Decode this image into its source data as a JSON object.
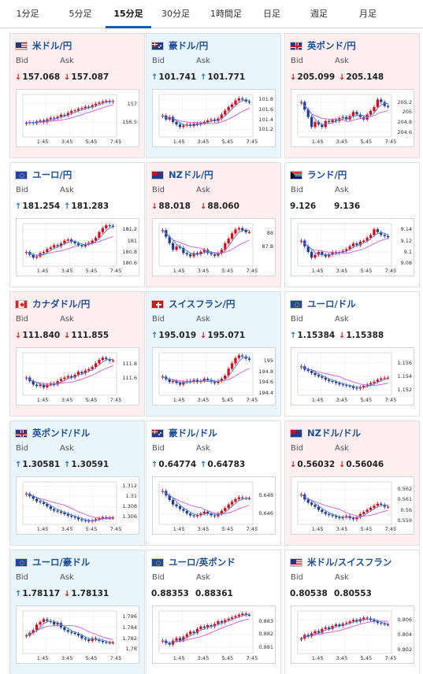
{
  "tabs": [
    {
      "label": "1分足",
      "active": false
    },
    {
      "label": "5分足",
      "active": false
    },
    {
      "label": "15分足",
      "active": true
    },
    {
      "label": "30分足",
      "active": false
    },
    {
      "label": "1時間足",
      "active": false
    },
    {
      "label": "日足",
      "active": false
    },
    {
      "label": "週足",
      "active": false
    },
    {
      "label": "月足",
      "active": false
    }
  ],
  "labels": {
    "bid": "Bid",
    "ask": "Ask"
  },
  "colors": {
    "accent": "#1a5ca8",
    "up": "#1e78c8",
    "down": "#d9221c",
    "candle_up": "#e60012",
    "candle_down": "#1f3a9a",
    "ma_short": "#4a7fd1",
    "ma_long": "#d25cd8",
    "panel_red": "#fdeff0",
    "panel_blue": "#e9f5fc"
  },
  "x_ticks": [
    "1:45",
    "3:45",
    "5:45",
    "7:45"
  ],
  "pairs": [
    {
      "name": "米ドル/円",
      "flag": "us-flag",
      "bg": "red",
      "bid": "157.068",
      "ask": "157.087",
      "bid_dir": "down",
      "ask_dir": "down",
      "yticks": [
        "157",
        "156.5"
      ],
      "ymin": 156.1,
      "ymax": 157.25,
      "trend": [
        156.48,
        156.5,
        156.47,
        156.52,
        156.55,
        156.5,
        156.58,
        156.62,
        156.6,
        156.65,
        156.7,
        156.68,
        156.75,
        156.8,
        156.82,
        156.86,
        156.88,
        156.92,
        156.9,
        156.96,
        157.0,
        157.03,
        157.06,
        157.08,
        157.05,
        157.07
      ]
    },
    {
      "name": "豪ドル/円",
      "flag": "au-flag",
      "bg": "blue",
      "bid": "101.741",
      "ask": "101.771",
      "bid_dir": "up",
      "ask_dir": "up",
      "yticks": [
        "101.8",
        "101.6",
        "101.4",
        "101.2"
      ],
      "ymin": 101.05,
      "ymax": 101.9,
      "trend": [
        101.48,
        101.4,
        101.45,
        101.35,
        101.3,
        101.25,
        101.28,
        101.3,
        101.27,
        101.32,
        101.3,
        101.33,
        101.35,
        101.38,
        101.4,
        101.37,
        101.42,
        101.5,
        101.58,
        101.65,
        101.7,
        101.78,
        101.82,
        101.8,
        101.76,
        101.74
      ]
    },
    {
      "name": "英ポンド/円",
      "flag": "uk-flag",
      "bg": "red",
      "bid": "205.099",
      "ask": "205.148",
      "bid_dir": "down",
      "ask_dir": "down",
      "yticks": [
        "205.2",
        "205",
        "204.8",
        "204.6"
      ],
      "ymin": 204.5,
      "ymax": 205.35,
      "trend": [
        205.2,
        205.05,
        204.9,
        204.7,
        204.8,
        204.75,
        204.7,
        204.82,
        204.8,
        204.84,
        204.82,
        204.88,
        204.9,
        204.85,
        204.92,
        205.0,
        204.95,
        204.9,
        204.85,
        204.95,
        205.02,
        205.1,
        205.25,
        205.2,
        205.12,
        205.1
      ]
    },
    {
      "name": "ユーロ/円",
      "flag": "eu-flag",
      "bg": "white",
      "bid": "181.254",
      "ask": "181.283",
      "bid_dir": "up",
      "ask_dir": "up",
      "yticks": [
        "181.2",
        "181",
        "180.8",
        "180.6"
      ],
      "ymin": 180.55,
      "ymax": 181.3,
      "trend": [
        180.8,
        180.75,
        180.7,
        180.72,
        180.78,
        180.8,
        180.85,
        180.88,
        180.92,
        180.9,
        180.95,
        181.0,
        181.02,
        180.98,
        180.95,
        180.92,
        180.9,
        180.94,
        180.96,
        181.0,
        181.05,
        181.15,
        181.22,
        181.27,
        181.26,
        181.25
      ]
    },
    {
      "name": "NZドル/円",
      "flag": "nz-flag",
      "bg": "red",
      "bid": "88.018",
      "ask": "88.060",
      "bid_dir": "down",
      "ask_dir": "down",
      "yticks": [
        "88",
        "87.8"
      ],
      "ymin": 87.5,
      "ymax": 88.15,
      "trend": [
        88.05,
        87.95,
        87.85,
        87.75,
        87.8,
        87.78,
        87.7,
        87.68,
        87.65,
        87.7,
        87.68,
        87.72,
        87.75,
        87.7,
        87.68,
        87.66,
        87.7,
        87.75,
        87.85,
        87.92,
        88.0,
        88.06,
        88.08,
        88.05,
        88.02,
        88.02
      ]
    },
    {
      "name": "ランド/円",
      "flag": "za-flag",
      "bg": "white",
      "bid": "9.126",
      "ask": "9.136",
      "bid_dir": "none",
      "ask_dir": "none",
      "yticks": [
        "9.14",
        "9.12",
        "9.1",
        "9.08"
      ],
      "ymin": 9.075,
      "ymax": 9.15,
      "trend": [
        9.12,
        9.11,
        9.1,
        9.09,
        9.095,
        9.1,
        9.095,
        9.092,
        9.095,
        9.1,
        9.098,
        9.1,
        9.102,
        9.105,
        9.11,
        9.115,
        9.112,
        9.118,
        9.12,
        9.125,
        9.13,
        9.14,
        9.135,
        9.13,
        9.128,
        9.126
      ]
    },
    {
      "name": "カナダドル/円",
      "flag": "ca-flag",
      "bg": "red",
      "bid": "111.840",
      "ask": "111.855",
      "bid_dir": "down",
      "ask_dir": "down",
      "yticks": [
        "111.8",
        "111.6"
      ],
      "ymin": 111.35,
      "ymax": 111.95,
      "trend": [
        111.6,
        111.55,
        111.5,
        111.48,
        111.5,
        111.46,
        111.5,
        111.52,
        111.5,
        111.55,
        111.58,
        111.6,
        111.62,
        111.6,
        111.64,
        111.68,
        111.66,
        111.7,
        111.72,
        111.75,
        111.8,
        111.85,
        111.88,
        111.86,
        111.84,
        111.84
      ]
    },
    {
      "name": "スイスフラン/円",
      "flag": "ch-flag",
      "bg": "blue",
      "bid": "195.019",
      "ask": "195.071",
      "bid_dir": "up",
      "ask_dir": "down",
      "yticks": [
        "195",
        "194.8",
        "194.6",
        "194.4"
      ],
      "ymin": 194.35,
      "ymax": 195.15,
      "trend": [
        194.7,
        194.65,
        194.6,
        194.62,
        194.58,
        194.55,
        194.6,
        194.62,
        194.6,
        194.64,
        194.6,
        194.62,
        194.66,
        194.64,
        194.6,
        194.58,
        194.62,
        194.66,
        194.72,
        194.85,
        194.95,
        195.05,
        195.1,
        195.08,
        195.04,
        195.02
      ]
    },
    {
      "name": "ユーロ/ドル",
      "flag": "eu-us-flag",
      "bg": "white",
      "bid": "1.15384",
      "ask": "1.15388",
      "bid_dir": "up",
      "ask_dir": "down",
      "yticks": [
        "1.156",
        "1.154",
        "1.152"
      ],
      "ymin": 1.1512,
      "ymax": 1.1575,
      "trend": [
        1.1555,
        1.155,
        1.1548,
        1.1545,
        1.1542,
        1.154,
        1.1538,
        1.1535,
        1.1533,
        1.1532,
        1.153,
        1.1528,
        1.1527,
        1.1526,
        1.1525,
        1.1523,
        1.1522,
        1.1524,
        1.1526,
        1.1528,
        1.153,
        1.1532,
        1.1535,
        1.1537,
        1.1538,
        1.1538
      ]
    },
    {
      "name": "英ポンド/ドル",
      "flag": "uk-us-flag",
      "bg": "blue",
      "bid": "1.30581",
      "ask": "1.30591",
      "bid_dir": "up",
      "ask_dir": "up",
      "yticks": [
        "1.312",
        "1.31",
        "1.308",
        "1.306"
      ],
      "ymin": 1.3045,
      "ymax": 1.3128,
      "trend": [
        1.3105,
        1.31,
        1.3095,
        1.309,
        1.3088,
        1.3085,
        1.308,
        1.3075,
        1.3072,
        1.307,
        1.3068,
        1.3065,
        1.3062,
        1.306,
        1.3058,
        1.3055,
        1.3053,
        1.3052,
        1.3051,
        1.3053,
        1.3055,
        1.3057,
        1.3059,
        1.3058,
        1.3058,
        1.3058
      ]
    },
    {
      "name": "豪ドル/ドル",
      "flag": "au-us-flag",
      "bg": "white",
      "bid": "0.64774",
      "ask": "0.64783",
      "bid_dir": "up",
      "ask_dir": "up",
      "yticks": [
        "0.648",
        "0.646"
      ],
      "ymin": 0.6448,
      "ymax": 0.6495,
      "trend": [
        0.6485,
        0.648,
        0.6475,
        0.647,
        0.6468,
        0.6465,
        0.6463,
        0.646,
        0.6458,
        0.6457,
        0.6458,
        0.646,
        0.6462,
        0.646,
        0.6458,
        0.6457,
        0.646,
        0.6463,
        0.6466,
        0.647,
        0.6473,
        0.6476,
        0.6478,
        0.6477,
        0.6477,
        0.6477
      ]
    },
    {
      "name": "NZドル/ドル",
      "flag": "nz-us-flag",
      "bg": "red",
      "bid": "0.56032",
      "ask": "0.56046",
      "bid_dir": "down",
      "ask_dir": "down",
      "yticks": [
        "0.562",
        "0.561",
        "0.56",
        "0.559"
      ],
      "ymin": 0.5586,
      "ymax": 0.5627,
      "trend": [
        0.5615,
        0.561,
        0.5607,
        0.5605,
        0.5603,
        0.56,
        0.5598,
        0.5596,
        0.5595,
        0.5594,
        0.5593,
        0.5592,
        0.5593,
        0.5594,
        0.5592,
        0.5591,
        0.5593,
        0.5596,
        0.5598,
        0.56,
        0.5602,
        0.5604,
        0.5606,
        0.5605,
        0.5603,
        0.5603
      ]
    },
    {
      "name": "ユーロ/豪ドル",
      "flag": "eu-au-flag",
      "bg": "blue",
      "bid": "1.78117",
      "ask": "1.78131",
      "bid_dir": "up",
      "ask_dir": "down",
      "yticks": [
        "1.786",
        "1.784",
        "1.782",
        "1.78"
      ],
      "ymin": 1.7792,
      "ymax": 1.787,
      "trend": [
        1.7825,
        1.783,
        1.7835,
        1.7845,
        1.785,
        1.7855,
        1.7852,
        1.785,
        1.7845,
        1.7848,
        1.784,
        1.7835,
        1.7832,
        1.783,
        1.7828,
        1.7825,
        1.782,
        1.7818,
        1.7815,
        1.782,
        1.7818,
        1.7815,
        1.7813,
        1.7812,
        1.7812,
        1.7812
      ]
    },
    {
      "name": "ユーロ/英ポンド",
      "flag": "eu-uk-flag",
      "bg": "white",
      "bid": "0.88353",
      "ask": "0.88361",
      "bid_dir": "none",
      "ask_dir": "none",
      "yticks": [
        "0.883",
        "0.882",
        "0.881"
      ],
      "ymin": 0.8805,
      "ymax": 0.8838,
      "trend": [
        0.8815,
        0.8813,
        0.8812,
        0.8815,
        0.8817,
        0.8815,
        0.8818,
        0.882,
        0.8822,
        0.8821,
        0.8824,
        0.8826,
        0.8825,
        0.8827,
        0.8826,
        0.8828,
        0.883,
        0.8829,
        0.8831,
        0.8832,
        0.8833,
        0.8834,
        0.8835,
        0.8836,
        0.8835,
        0.8835
      ]
    },
    {
      "name": "米ドル/スイスフラン",
      "flag": "us-ch-flag",
      "bg": "white",
      "bid": "0.80538",
      "ask": "0.80553",
      "bid_dir": "none",
      "ask_dir": "none",
      "yticks": [
        "0.806",
        "0.804",
        "0.802"
      ],
      "ymin": 0.8015,
      "ymax": 0.8072,
      "trend": [
        0.8035,
        0.804,
        0.8038,
        0.8042,
        0.8045,
        0.8043,
        0.8048,
        0.805,
        0.8048,
        0.8052,
        0.8054,
        0.8052,
        0.8055,
        0.8056,
        0.8058,
        0.806,
        0.8058,
        0.8061,
        0.8063,
        0.8062,
        0.806,
        0.8058,
        0.8056,
        0.8055,
        0.8054,
        0.8054
      ]
    }
  ]
}
